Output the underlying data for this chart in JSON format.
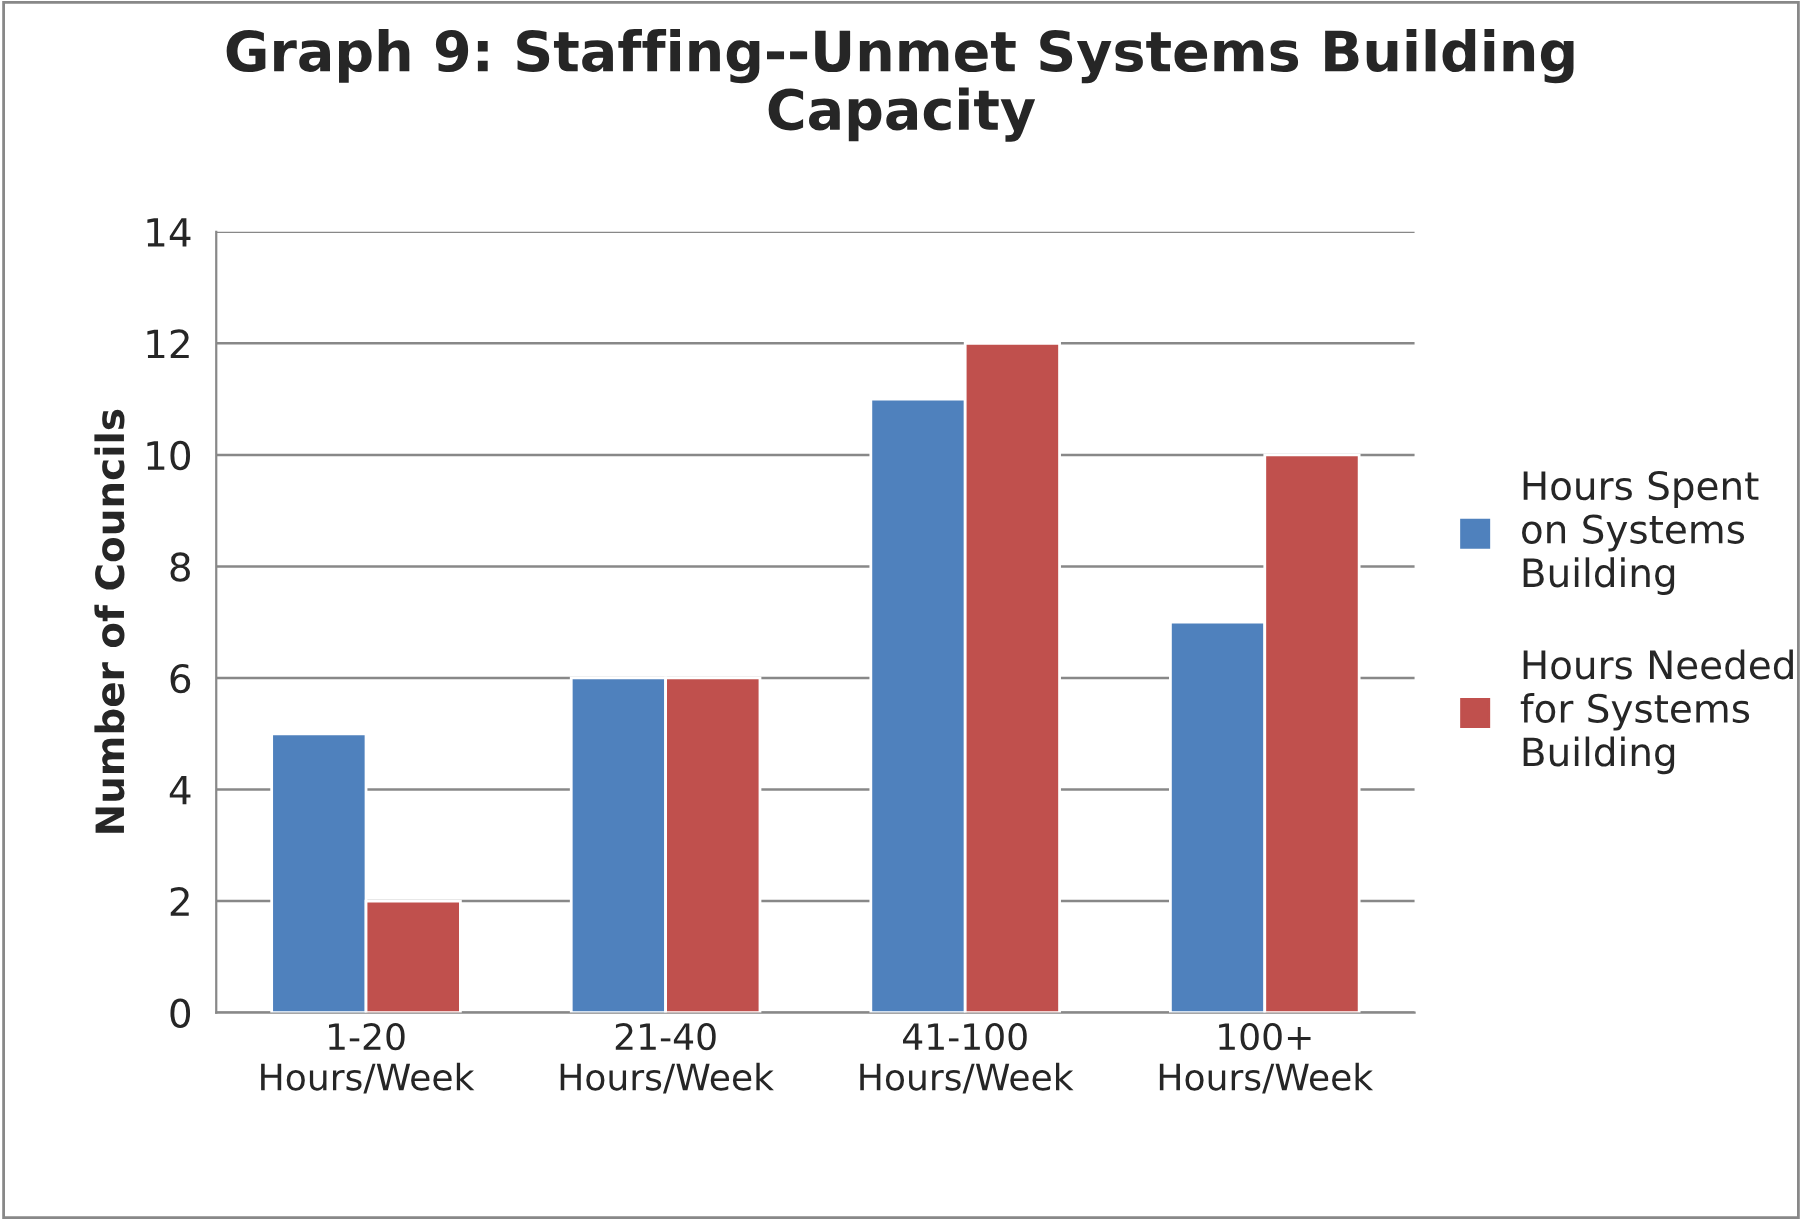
{
  "chart_data": {
    "type": "bar",
    "title": "Graph 9: Staffing--Unmet Systems Building Capacity",
    "ylabel": "Number of Councils",
    "categories": [
      "1-20 Hours/Week",
      "21-40 Hours/Week",
      "41-100 Hours/Week",
      "100+ Hours/Week"
    ],
    "series": [
      {
        "name": "Hours Spent on Systems Building",
        "color": "#4f81bd",
        "values": [
          5,
          6,
          11,
          7
        ]
      },
      {
        "name": "Hours Needed for Systems Building",
        "color": "#c0504d",
        "values": [
          2,
          6,
          12,
          10
        ]
      }
    ],
    "ylim": [
      0,
      14
    ],
    "yticks": [
      0,
      2,
      4,
      6,
      8,
      10,
      12,
      14
    ],
    "grid": "y",
    "legend": "right"
  }
}
